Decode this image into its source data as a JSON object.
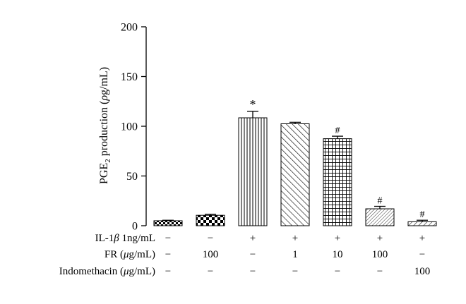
{
  "chart_data": {
    "type": "bar",
    "y_axis": {
      "label_prefix": "PGE",
      "label_subscript": "2",
      "label_middle": " production (",
      "label_unit_italic": "ρ",
      "label_suffix": "g/mL)",
      "ylim": [
        0,
        200
      ],
      "ticks": [
        "0",
        "50",
        "100",
        "150",
        "200"
      ]
    },
    "values": [
      5,
      10.5,
      108.5,
      102.5,
      87.5,
      17,
      4
    ],
    "errors": [
      0.5,
      1,
      6.5,
      1.5,
      2.5,
      2.5,
      1.5
    ],
    "annotations": [
      "",
      "",
      "*",
      "",
      "#",
      "#",
      "#"
    ],
    "patterns": [
      "checker-small",
      "checker-large",
      "vertical",
      "diagonal-back",
      "grid",
      "diagonal-fine",
      "diagonal"
    ],
    "conditions": [
      {
        "label_prefix": "IL-1",
        "label_italic": "β",
        "label_suffix": " 1ng/mL",
        "values": [
          "−",
          "−",
          "+",
          "+",
          "+",
          "+",
          "+"
        ]
      },
      {
        "label_prefix": "FR (",
        "label_italic": "μ",
        "label_suffix": "g/mL)",
        "values": [
          "−",
          "100",
          "−",
          "1",
          "10",
          "100",
          "−"
        ]
      },
      {
        "label_prefix": "Indomethacin (",
        "label_italic": "μ",
        "label_suffix": "g/mL)",
        "values": [
          "−",
          "−",
          "−",
          "−",
          "−",
          "−",
          "100"
        ]
      }
    ]
  }
}
